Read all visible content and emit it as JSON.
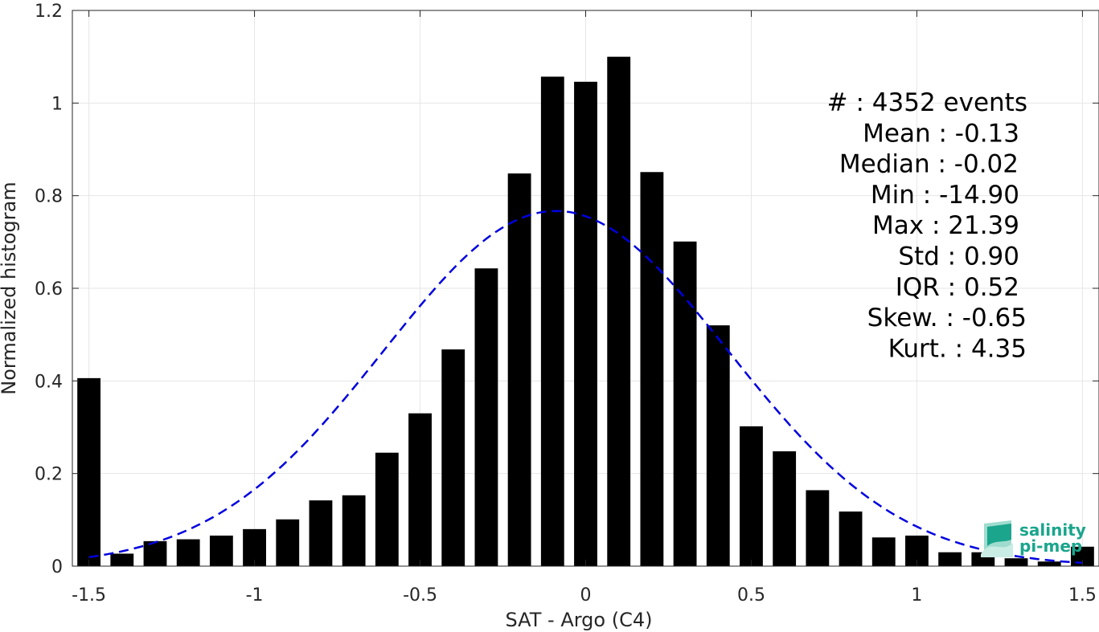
{
  "chart_data": {
    "type": "bar",
    "xlabel": "SAT - Argo (C4)",
    "ylabel": "Normalized histogram",
    "xlim": [
      -1.55,
      1.55
    ],
    "ylim": [
      0,
      1.2
    ],
    "grid": true,
    "x_ticks": [
      -1.5,
      -1,
      -0.5,
      0,
      0.5,
      1,
      1.5
    ],
    "x_tick_labels": [
      "-1.5",
      "-1",
      "-0.5",
      "0",
      "0.5",
      "1",
      "1.5"
    ],
    "y_ticks": [
      0,
      0.2,
      0.4,
      0.6,
      0.8,
      1,
      1.2
    ],
    "y_tick_labels": [
      "0",
      "0.2",
      "0.4",
      "0.6",
      "0.8",
      "1",
      "1.2"
    ],
    "bar_color": "#000000",
    "bins": [
      -1.5,
      -1.4,
      -1.3,
      -1.2,
      -1.1,
      -1.0,
      -0.9,
      -0.8,
      -0.7,
      -0.6,
      -0.5,
      -0.4,
      -0.3,
      -0.2,
      -0.1,
      0.0,
      0.1,
      0.2,
      0.3,
      0.4,
      0.5,
      0.6,
      0.7,
      0.8,
      0.9,
      1.0,
      1.1,
      1.2,
      1.3,
      1.4,
      1.5
    ],
    "values": [
      0.406,
      0.027,
      0.054,
      0.058,
      0.066,
      0.08,
      0.101,
      0.142,
      0.153,
      0.245,
      0.33,
      0.468,
      0.643,
      0.848,
      1.057,
      1.046,
      1.1,
      0.851,
      0.701,
      0.52,
      0.302,
      0.248,
      0.164,
      0.118,
      0.062,
      0.066,
      0.03,
      0.03,
      0.017,
      0.01,
      0.042
    ],
    "fit_curve": {
      "style": "dashed",
      "color": "#0000e0",
      "mean": -0.09,
      "std": 0.52,
      "amplitude": 0.767,
      "x_range": [
        -1.5,
        1.5
      ]
    },
    "stats": [
      "#  : 4352 events",
      "Mean : -0.13",
      "Median : -0.02",
      "Min : -14.90",
      "Max : 21.39",
      "Std : 0.90",
      "IQR : 0.52",
      "Skew. : -0.65",
      "Kurt. : 4.35"
    ]
  },
  "logo": {
    "line1": "salinity",
    "line2": "pi-mep",
    "color": "#1aa58c"
  }
}
